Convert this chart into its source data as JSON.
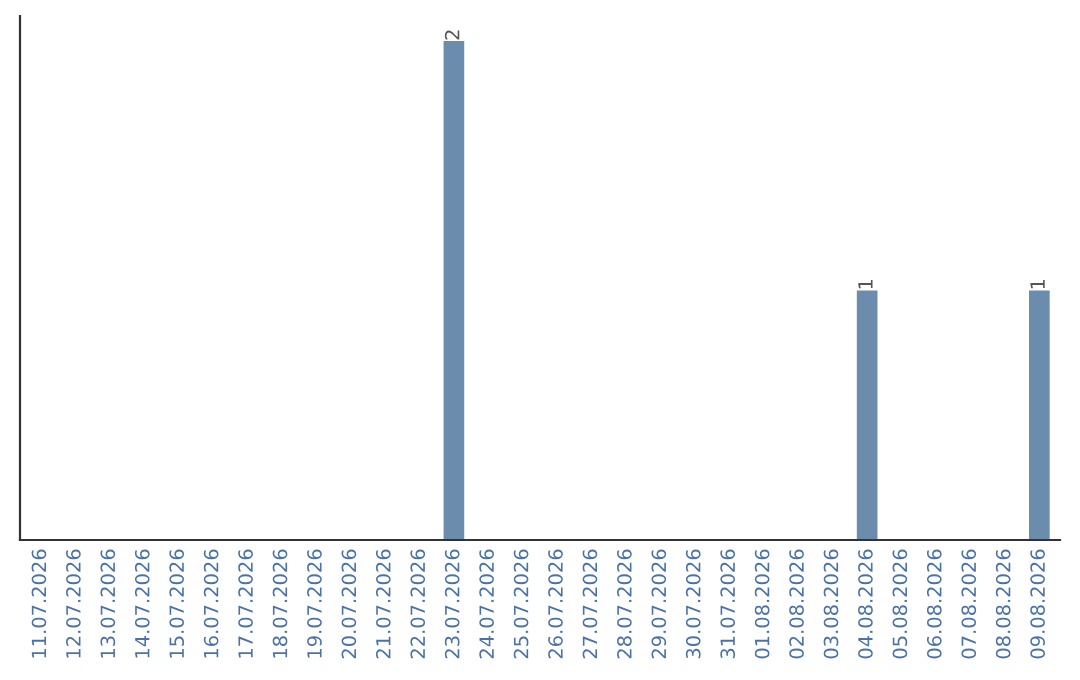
{
  "chart_data": {
    "type": "bar",
    "categories": [
      "11.07.2026",
      "12.07.2026",
      "13.07.2026",
      "14.07.2026",
      "15.07.2026",
      "16.07.2026",
      "17.07.2026",
      "18.07.2026",
      "19.07.2026",
      "20.07.2026",
      "21.07.2026",
      "22.07.2026",
      "23.07.2026",
      "24.07.2026",
      "25.07.2026",
      "26.07.2026",
      "27.07.2026",
      "28.07.2026",
      "29.07.2026",
      "30.07.2026",
      "31.07.2026",
      "01.08.2026",
      "02.08.2026",
      "03.08.2026",
      "04.08.2026",
      "05.08.2026",
      "06.08.2026",
      "07.08.2026",
      "08.08.2026",
      "09.08.2026"
    ],
    "values": [
      null,
      null,
      null,
      null,
      null,
      null,
      null,
      null,
      null,
      null,
      null,
      null,
      2,
      null,
      null,
      null,
      null,
      null,
      null,
      null,
      null,
      null,
      null,
      null,
      1,
      null,
      null,
      null,
      null,
      1
    ],
    "data_labels": true,
    "color": "#6b8cad",
    "tick_labels": "x",
    "grid": false
  }
}
